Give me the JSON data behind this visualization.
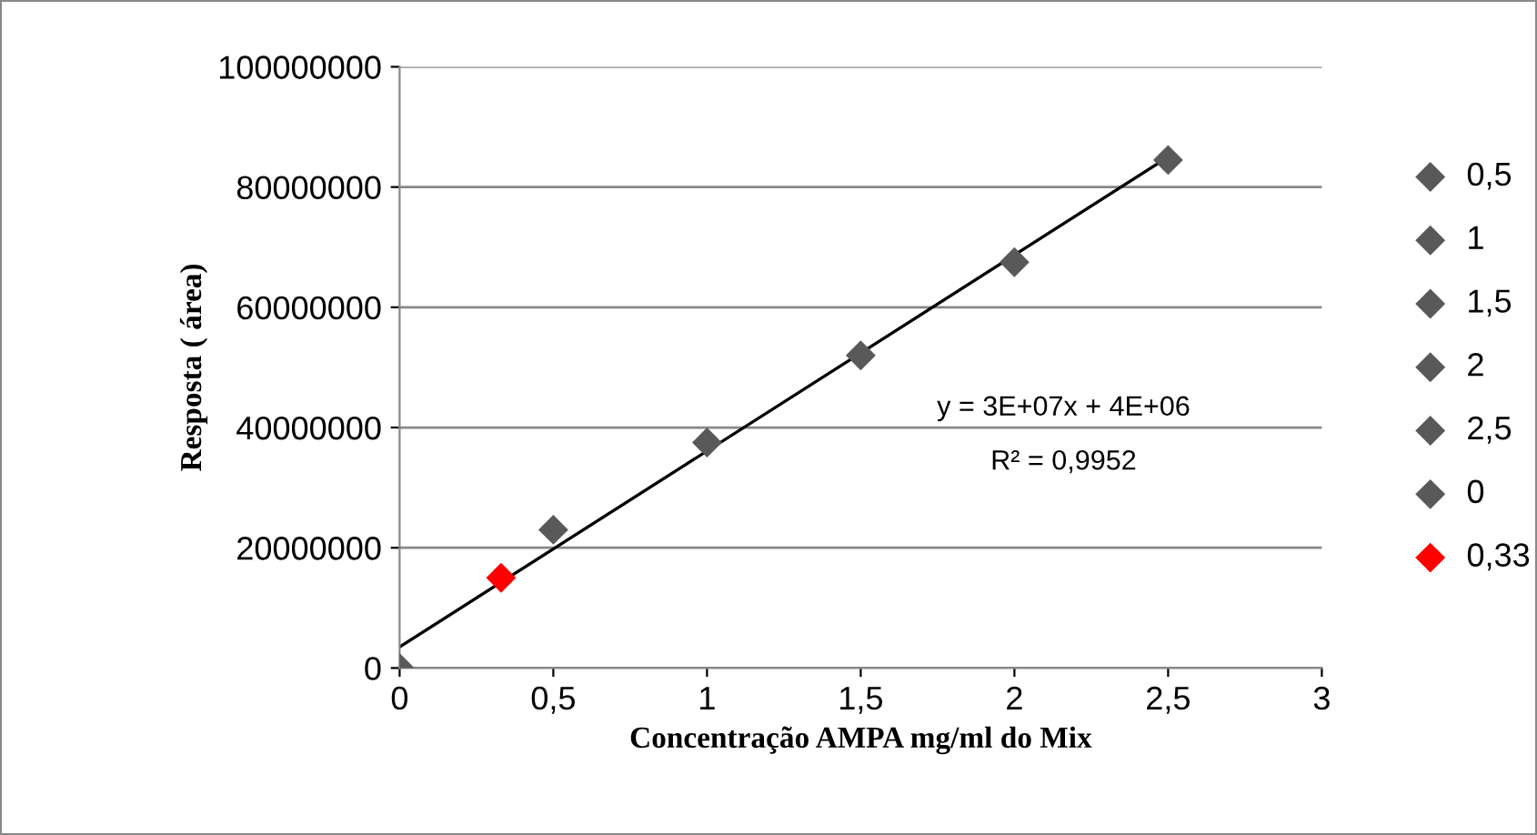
{
  "chart_data": {
    "type": "scatter",
    "xlabel": "Concentração AMPA mg/ml do Mix",
    "ylabel": "Resposta ( área)",
    "series": [
      {
        "name": "0,5",
        "color": "#595959",
        "x": [
          0.5
        ],
        "values": [
          23000000
        ]
      },
      {
        "name": "1",
        "color": "#595959",
        "x": [
          1
        ],
        "values": [
          37500000
        ]
      },
      {
        "name": "1,5",
        "color": "#595959",
        "x": [
          1.5
        ],
        "values": [
          52000000
        ]
      },
      {
        "name": "2",
        "color": "#595959",
        "x": [
          2
        ],
        "values": [
          67500000
        ]
      },
      {
        "name": "2,5",
        "color": "#595959",
        "x": [
          2.5
        ],
        "values": [
          84500000
        ]
      },
      {
        "name": "0",
        "color": "#595959",
        "x": [
          0
        ],
        "values": [
          0
        ]
      },
      {
        "name": "0,33",
        "color": "#ff0000",
        "x": [
          0.33
        ],
        "values": [
          15000000
        ]
      },
      {
        "type": "line",
        "color": "#000000",
        "x": [
          0,
          2.5
        ],
        "values": [
          3500000,
          85000000
        ],
        "marker": "none"
      }
    ],
    "xlim": [
      0,
      3
    ],
    "xticks": [
      0,
      {
        "value": 0.5,
        "label": "0,5"
      },
      1,
      {
        "value": 1.5,
        "label": "1,5"
      },
      2,
      {
        "value": 2.5,
        "label": "2,5"
      },
      3
    ],
    "ylim": [
      0,
      100000000
    ],
    "yticks": [
      0,
      20000000,
      40000000,
      60000000,
      80000000,
      100000000
    ],
    "annotations": [
      "y = 3E+07x + 4E+06",
      "R² = 0,9952"
    ],
    "grid": "y",
    "legend": "right",
    "marker": "diamond"
  }
}
